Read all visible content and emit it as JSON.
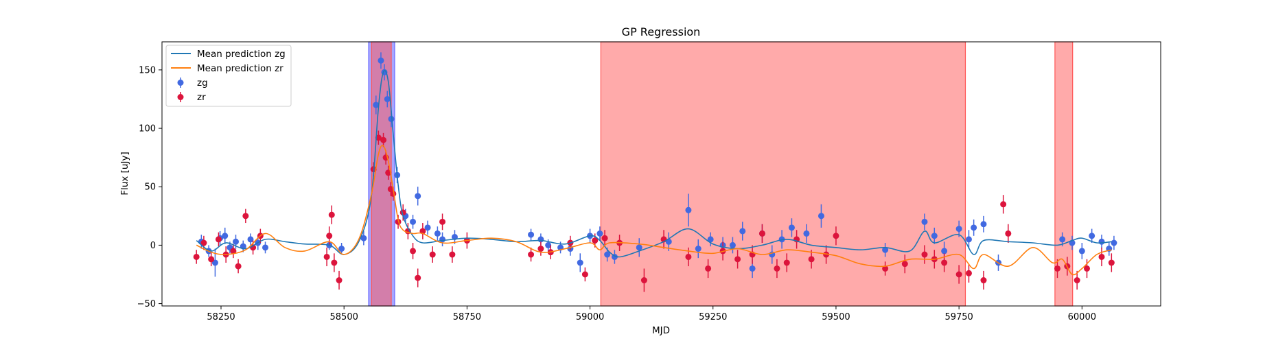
{
  "chart_data": {
    "type": "scatter",
    "title": "GP Regression",
    "xlabel": "MJD",
    "ylabel": "Flux [uJy]",
    "xlim": [
      58130,
      60160
    ],
    "ylim": [
      -52,
      174
    ],
    "xticks": [
      58250,
      58500,
      58750,
      59000,
      59250,
      59500,
      59750,
      60000
    ],
    "yticks": [
      -50,
      0,
      50,
      100,
      150
    ],
    "grid": false,
    "legend_placement": "top-left",
    "colors": {
      "zg": "#4169e1",
      "zr": "#dc143c",
      "mean_zg": "#1f77b4",
      "mean_zr": "#ff7f0e",
      "shade_red": "#ff5555",
      "shade_blue": "#6a6aff"
    },
    "shaded_regions": [
      {
        "color": "blue",
        "x0": 58550,
        "x1": 58603
      },
      {
        "color": "red",
        "x0": 58556,
        "x1": 58596
      },
      {
        "color": "red",
        "x0": 59022,
        "x1": 59763
      },
      {
        "color": "red",
        "x0": 59945,
        "x1": 59981
      }
    ],
    "series": [
      {
        "name": "Mean prediction zg",
        "kind": "line",
        "x": [
          58200,
          58230,
          58260,
          58300,
          58340,
          58380,
          58420,
          58470,
          58500,
          58530,
          58555,
          58570,
          58580,
          58590,
          58600,
          58610,
          58620,
          58640,
          58660,
          58700,
          58750,
          58800,
          58850,
          58900,
          58950,
          59000,
          59020,
          59040,
          59060,
          59100,
          59150,
          59200,
          59250,
          59300,
          59350,
          59400,
          59450,
          59500,
          59550,
          59600,
          59650,
          59680,
          59700,
          59750,
          59780,
          59800,
          59850,
          59900,
          59950,
          59980,
          60000,
          60030,
          60060
        ],
        "y": [
          4,
          -5,
          2,
          -3,
          5,
          3,
          1,
          0,
          -8,
          3,
          40,
          118,
          148,
          140,
          95,
          52,
          25,
          8,
          2,
          4,
          6,
          5,
          3,
          4,
          1,
          8,
          4,
          -6,
          -10,
          -5,
          3,
          14,
          1,
          -3,
          0,
          5,
          0,
          -2,
          -4,
          -2,
          -5,
          12,
          2,
          9,
          -8,
          4,
          3,
          2,
          0,
          4,
          6,
          2,
          3
        ]
      },
      {
        "name": "Mean prediction zr",
        "kind": "line",
        "x": [
          58200,
          58230,
          58260,
          58300,
          58340,
          58380,
          58420,
          58470,
          58500,
          58530,
          58555,
          58570,
          58580,
          58590,
          58600,
          58610,
          58620,
          58640,
          58660,
          58700,
          58750,
          58800,
          58850,
          58900,
          58950,
          59000,
          59020,
          59040,
          59100,
          59150,
          59200,
          59250,
          59300,
          59350,
          59400,
          59450,
          59500,
          59550,
          59600,
          59650,
          59700,
          59750,
          59780,
          59800,
          59850,
          59900,
          59940,
          59960,
          59980,
          60000,
          60030,
          60060
        ],
        "y": [
          0,
          -6,
          -8,
          -4,
          10,
          -2,
          -5,
          3,
          -8,
          5,
          42,
          78,
          85,
          72,
          48,
          22,
          13,
          10,
          10,
          2,
          4,
          6,
          3,
          -6,
          -3,
          2,
          -4,
          2,
          1,
          -2,
          -5,
          -7,
          -3,
          -8,
          -4,
          -6,
          -9,
          -16,
          -18,
          -12,
          -12,
          -8,
          -20,
          -8,
          -18,
          -2,
          -15,
          -12,
          -25,
          -20,
          -8,
          -4
        ]
      },
      {
        "name": "zg",
        "kind": "errorbar",
        "x": [
          58210,
          58225,
          58238,
          58248,
          58258,
          58268,
          58280,
          58295,
          58310,
          58325,
          58340,
          58470,
          58495,
          58540,
          58565,
          58575,
          58582,
          58588,
          58596,
          58608,
          58625,
          58640,
          58650,
          58670,
          58690,
          58700,
          58725,
          58880,
          58900,
          58915,
          58940,
          58960,
          58980,
          59000,
          59020,
          59035,
          59050,
          59100,
          59160,
          59200,
          59220,
          59245,
          59270,
          59290,
          59310,
          59330,
          59350,
          59370,
          59390,
          59410,
          59440,
          59470,
          59600,
          59680,
          59700,
          59720,
          59750,
          59770,
          59780,
          59800,
          59830,
          59960,
          59980,
          60000,
          60020,
          60040,
          60055,
          60065
        ],
        "y": [
          3,
          -5,
          -15,
          6,
          8,
          -2,
          3,
          -1,
          5,
          2,
          -2,
          0,
          -3,
          6,
          120,
          158,
          148,
          125,
          108,
          60,
          25,
          20,
          42,
          15,
          10,
          5,
          7,
          9,
          5,
          0,
          -2,
          -3,
          -15,
          8,
          10,
          -8,
          -10,
          -2,
          3,
          30,
          -3,
          5,
          0,
          0,
          12,
          -20,
          10,
          -8,
          5,
          15,
          10,
          25,
          -4,
          20,
          8,
          -5,
          14,
          5,
          15,
          18,
          -15,
          5,
          2,
          -5,
          8,
          3,
          -3,
          2
        ],
        "err": [
          6,
          5,
          12,
          6,
          7,
          5,
          6,
          5,
          5,
          6,
          5,
          4,
          5,
          6,
          8,
          7,
          7,
          7,
          7,
          7,
          6,
          6,
          8,
          6,
          6,
          6,
          6,
          5,
          5,
          5,
          5,
          6,
          8,
          6,
          6,
          6,
          6,
          8,
          8,
          14,
          8,
          6,
          7,
          7,
          8,
          8,
          8,
          8,
          8,
          8,
          8,
          10,
          6,
          7,
          7,
          8,
          7,
          8,
          7,
          7,
          7,
          6,
          6,
          7,
          6,
          6,
          6,
          6
        ]
      },
      {
        "name": "zr",
        "kind": "errorbar",
        "x": [
          58200,
          58215,
          58230,
          58245,
          58260,
          58275,
          58285,
          58300,
          58315,
          58330,
          58465,
          58470,
          58475,
          58480,
          58490,
          58560,
          58570,
          58580,
          58585,
          58590,
          58595,
          58600,
          58610,
          58620,
          58630,
          58640,
          58650,
          58660,
          58680,
          58700,
          58720,
          58750,
          58880,
          58900,
          58920,
          58960,
          58990,
          59010,
          59030,
          59060,
          59110,
          59150,
          59200,
          59240,
          59270,
          59300,
          59330,
          59350,
          59380,
          59400,
          59420,
          59450,
          59480,
          59500,
          59600,
          59640,
          59680,
          59700,
          59720,
          59750,
          59770,
          59800,
          59840,
          59850,
          59950,
          59970,
          59990,
          60010,
          60040,
          60060
        ],
        "y": [
          -10,
          2,
          -12,
          5,
          -8,
          -5,
          -18,
          25,
          -2,
          8,
          -10,
          8,
          26,
          -15,
          -30,
          65,
          92,
          90,
          75,
          62,
          48,
          44,
          20,
          28,
          12,
          -5,
          -28,
          12,
          -8,
          20,
          -8,
          4,
          -8,
          -3,
          -6,
          2,
          -25,
          4,
          6,
          2,
          -30,
          5,
          -10,
          -20,
          -5,
          -12,
          -8,
          10,
          -20,
          -15,
          5,
          -12,
          -8,
          8,
          -20,
          -16,
          -8,
          -12,
          -15,
          -25,
          -24,
          -30,
          35,
          10,
          -20,
          -18,
          -30,
          -20,
          -10,
          -15
        ],
        "err": [
          6,
          6,
          6,
          6,
          7,
          6,
          6,
          6,
          6,
          6,
          8,
          8,
          8,
          8,
          8,
          6,
          6,
          6,
          6,
          6,
          6,
          6,
          6,
          7,
          7,
          7,
          8,
          7,
          7,
          7,
          7,
          7,
          6,
          6,
          6,
          6,
          6,
          6,
          7,
          7,
          10,
          8,
          8,
          8,
          8,
          8,
          8,
          8,
          8,
          8,
          8,
          8,
          8,
          8,
          6,
          8,
          8,
          8,
          8,
          8,
          8,
          8,
          8,
          8,
          8,
          8,
          8,
          8,
          8,
          8
        ]
      }
    ],
    "legend": [
      "Mean prediction zg",
      "Mean prediction zr",
      "zg",
      "zr"
    ]
  }
}
